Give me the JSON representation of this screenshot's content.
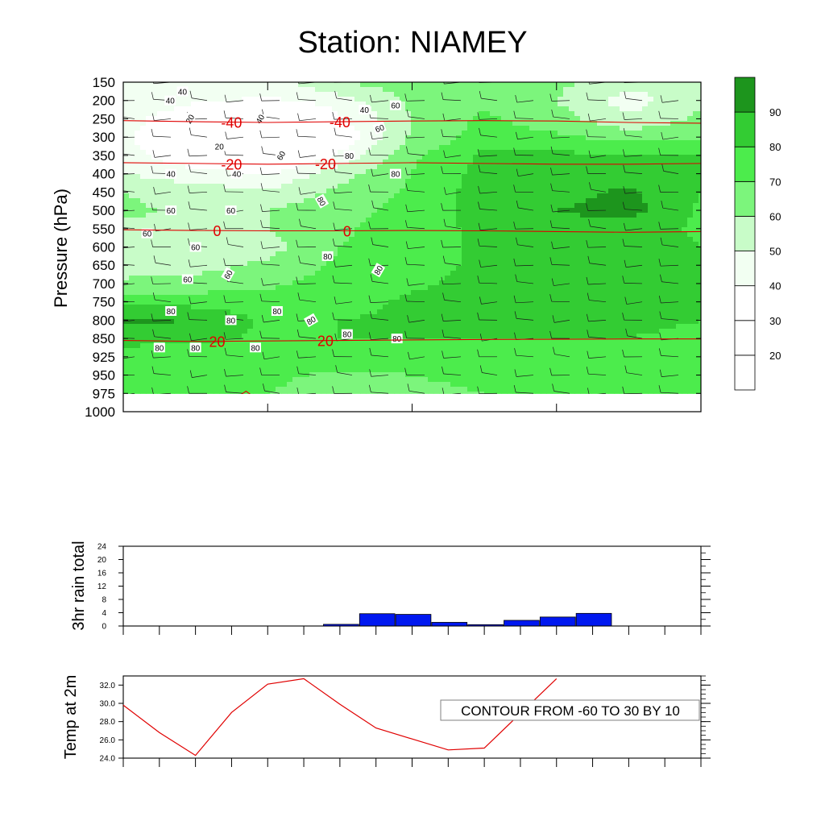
{
  "title": "Station: NIAMEY",
  "colors": {
    "rh_fill": [
      "#ffffff",
      "#ffffff",
      "#ffffff",
      "#ffffff",
      "#f2fff2",
      "#c8fcc8",
      "#7cf57c",
      "#4cec4c",
      "#33cc33",
      "#1d951d"
    ],
    "temp_contour": "#e00000",
    "rain_bar": "#0018f0",
    "t2m_line": "#e00000"
  },
  "chart_data": [
    {
      "type": "heatmap",
      "ylabel": "Pressure (hPa)",
      "y_ticks": [
        "150",
        "200",
        "250",
        "300",
        "350",
        "400",
        "450",
        "500",
        "550",
        "600",
        "650",
        "700",
        "750",
        "800",
        "850",
        "925",
        "950",
        "975",
        "1000"
      ],
      "y_reversed": true,
      "x_steps": 9,
      "rh_levels": [
        0,
        10,
        20,
        30,
        40,
        50,
        60,
        70,
        80,
        90,
        100
      ],
      "rh_colorbar_labels": [
        "20",
        "30",
        "40",
        "50",
        "60",
        "70",
        "80",
        "90"
      ],
      "rh_grid_x": [
        0,
        1,
        2,
        3,
        4,
        5,
        6,
        7,
        8
      ],
      "rh_grid_rows": [
        {
          "p": "150",
          "rh": [
            50,
            45,
            45,
            60,
            65,
            68,
            62,
            55,
            50
          ]
        },
        {
          "p": "200",
          "rh": [
            50,
            42,
            38,
            45,
            62,
            68,
            60,
            45,
            58
          ]
        },
        {
          "p": "250",
          "rh": [
            45,
            30,
            15,
            38,
            60,
            72,
            64,
            52,
            62
          ]
        },
        {
          "p": "300",
          "rh": [
            42,
            25,
            10,
            30,
            62,
            74,
            72,
            66,
            66
          ]
        },
        {
          "p": "350",
          "rh": [
            45,
            30,
            18,
            42,
            68,
            82,
            82,
            82,
            80
          ]
        },
        {
          "p": "400",
          "rh": [
            50,
            44,
            40,
            56,
            70,
            84,
            84,
            84,
            82
          ]
        },
        {
          "p": "450",
          "rh": [
            60,
            55,
            52,
            62,
            72,
            85,
            86,
            92,
            80
          ]
        },
        {
          "p": "500",
          "rh": [
            62,
            58,
            60,
            66,
            74,
            84,
            90,
            94,
            78
          ]
        },
        {
          "p": "550",
          "rh": [
            58,
            58,
            60,
            68,
            76,
            82,
            86,
            86,
            78
          ]
        },
        {
          "p": "600",
          "rh": [
            52,
            54,
            56,
            70,
            76,
            82,
            84,
            84,
            80
          ]
        },
        {
          "p": "650",
          "rh": [
            55,
            56,
            62,
            72,
            76,
            82,
            84,
            82,
            80
          ]
        },
        {
          "p": "700",
          "rh": [
            62,
            64,
            68,
            74,
            78,
            84,
            84,
            84,
            82
          ]
        },
        {
          "p": "750",
          "rh": [
            78,
            76,
            74,
            76,
            82,
            84,
            84,
            84,
            82
          ]
        },
        {
          "p": "800",
          "rh": [
            92,
            90,
            78,
            80,
            82,
            84,
            84,
            82,
            80
          ]
        },
        {
          "p": "850",
          "rh": [
            84,
            82,
            78,
            80,
            80,
            80,
            80,
            80,
            78
          ]
        },
        {
          "p": "925",
          "rh": [
            74,
            76,
            78,
            76,
            76,
            78,
            76,
            76,
            74
          ]
        },
        {
          "p": "950",
          "rh": [
            70,
            72,
            72,
            68,
            70,
            72,
            72,
            72,
            70
          ]
        },
        {
          "p": "975",
          "rh": [
            70,
            72,
            70,
            66,
            68,
            70,
            72,
            72,
            70
          ]
        }
      ],
      "rh_line_labels": [
        {
          "text": "40",
          "x": 0.65,
          "p": "200"
        },
        {
          "text": "40",
          "x": 0.82,
          "p": "175"
        },
        {
          "text": "20",
          "x": 0.92,
          "p": "250",
          "rot": -60
        },
        {
          "text": "20",
          "x": 1.33,
          "p": "325"
        },
        {
          "text": "40",
          "x": 1.89,
          "p": "250",
          "rot": -60
        },
        {
          "text": "40",
          "x": 0.66,
          "p": "400"
        },
        {
          "text": "40",
          "x": 1.57,
          "p": "400"
        },
        {
          "text": "60",
          "x": 2.18,
          "p": "350",
          "rot": -60
        },
        {
          "text": "40",
          "x": 3.34,
          "p": "225"
        },
        {
          "text": "60",
          "x": 3.55,
          "p": "275",
          "rot": -20
        },
        {
          "text": "60",
          "x": 3.77,
          "p": "213"
        },
        {
          "text": "80",
          "x": 3.13,
          "p": "350"
        },
        {
          "text": "80",
          "x": 3.77,
          "p": "400"
        },
        {
          "text": "80",
          "x": 2.75,
          "p": "475",
          "rot": 60
        },
        {
          "text": "60",
          "x": 0.66,
          "p": "500"
        },
        {
          "text": "60",
          "x": 1.49,
          "p": "500"
        },
        {
          "text": "60",
          "x": 0.33,
          "p": "563"
        },
        {
          "text": "60",
          "x": 1.0,
          "p": "600"
        },
        {
          "text": "60",
          "x": 0.89,
          "p": "688"
        },
        {
          "text": "60",
          "x": 1.45,
          "p": "675",
          "rot": -60
        },
        {
          "text": "80",
          "x": 2.83,
          "p": "625"
        },
        {
          "text": "80",
          "x": 3.53,
          "p": "663",
          "rot": -60
        },
        {
          "text": "80",
          "x": 0.66,
          "p": "775"
        },
        {
          "text": "80",
          "x": 1.49,
          "p": "800"
        },
        {
          "text": "80",
          "x": 2.13,
          "p": "775"
        },
        {
          "text": "80",
          "x": 2.6,
          "p": "800",
          "rot": -30
        },
        {
          "text": "80",
          "x": 3.1,
          "p": "838"
        },
        {
          "text": "80",
          "x": 3.79,
          "p": "850"
        },
        {
          "text": "80",
          "x": 0.5,
          "p": "887"
        },
        {
          "text": "80",
          "x": 1.0,
          "p": "887"
        },
        {
          "text": "80",
          "x": 1.83,
          "p": "887"
        }
      ],
      "temperature_contours": [
        {
          "level": "-40",
          "p": [
            255,
            258,
            260,
            258,
            256,
            255,
            256,
            260,
            262
          ],
          "label_x": [
            1.5,
            3.0
          ]
        },
        {
          "level": "-20",
          "p": [
            370,
            372,
            374,
            372,
            370,
            372,
            374,
            374,
            372
          ],
          "label_x": [
            1.5,
            2.8
          ]
        },
        {
          "level": "0",
          "p": [
            553,
            555,
            556,
            556,
            555,
            556,
            558,
            560,
            558
          ],
          "label_x": [
            1.3,
            3.1
          ]
        },
        {
          "level": "20",
          "p": [
            858,
            862,
            860,
            858,
            856,
            854,
            853,
            852,
            852
          ],
          "label_x": [
            1.3,
            2.8
          ]
        }
      ],
      "contour_info": "CONTOUR FROM -60 TO 30 BY 10"
    },
    {
      "type": "bar",
      "ylabel": "3hr rain total",
      "ylim": [
        0,
        24
      ],
      "y_ticks": [
        "0",
        "4",
        "8",
        "12",
        "16",
        "20",
        "24"
      ],
      "x": [
        0,
        1,
        2,
        3,
        4,
        5,
        6,
        7,
        8,
        9,
        10,
        11,
        12,
        13,
        14,
        15
      ],
      "values": [
        0,
        0,
        0,
        0,
        0,
        0.5,
        3.7,
        3.5,
        1.1,
        0.4,
        1.7,
        2.7,
        3.8,
        0,
        0,
        0
      ]
    },
    {
      "type": "line",
      "ylabel": "Temp at 2m",
      "ylim": [
        24.0,
        33.0
      ],
      "y_ticks": [
        "24.0",
        "26.0",
        "28.0",
        "30.0",
        "32.0"
      ],
      "x": [
        0,
        1,
        2,
        3,
        4,
        5,
        6,
        7,
        8,
        9,
        10,
        11,
        12
      ],
      "values": [
        29.8,
        26.8,
        24.3,
        29.0,
        32.1,
        32.7,
        29.9,
        27.3,
        26.1,
        24.9,
        25.1,
        28.9,
        32.7
      ]
    }
  ]
}
